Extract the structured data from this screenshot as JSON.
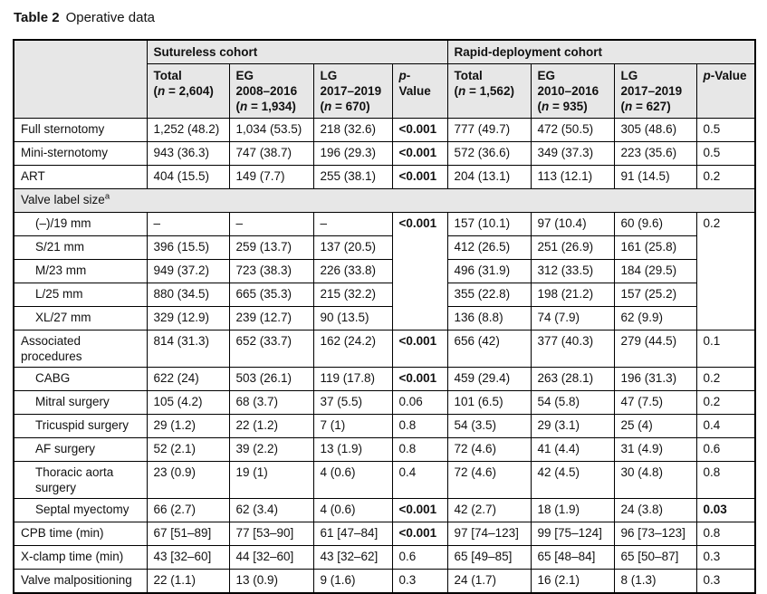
{
  "title": {
    "label": "Table 2",
    "caption": "Operative data"
  },
  "colors": {
    "header_bg": "#e7e7e7",
    "border": "#000000",
    "text": "#111111"
  },
  "header": {
    "groups": [
      {
        "label": "Sutureless cohort"
      },
      {
        "label": "Rapid-deployment cohort"
      }
    ],
    "columns": [
      {
        "name": "Total",
        "years": "",
        "n_open": "(",
        "n_italic": "n",
        "n_rest": " = 2,604)"
      },
      {
        "name": "EG",
        "years": "2008–2016",
        "n_open": "(",
        "n_italic": "n",
        "n_rest": " = 1,934)"
      },
      {
        "name": "LG",
        "years": "2017–2019",
        "n_open": "(",
        "n_italic": "n",
        "n_rest": " = 670)"
      },
      {
        "p_italic": "p",
        "p_rest": "-Value"
      },
      {
        "name": "Total",
        "years": "",
        "n_open": "(",
        "n_italic": "n",
        "n_rest": " = 1,562)"
      },
      {
        "name": "EG",
        "years": "2010–2016",
        "n_open": "(",
        "n_italic": "n",
        "n_rest": " = 935)"
      },
      {
        "name": "LG",
        "years": "2017–2019",
        "n_open": "(",
        "n_italic": "n",
        "n_rest": " = 627)"
      },
      {
        "p_italic": "p",
        "p_rest": "-Value"
      }
    ]
  },
  "rows": [
    {
      "type": "data",
      "label": "Full sternotomy",
      "indent": false,
      "cells": [
        "1,252 (48.2)",
        "1,034 (53.5)",
        "218 (32.6)",
        {
          "v": "<0.001",
          "bold": true
        },
        "777 (49.7)",
        "472 (50.5)",
        "305 (48.6)",
        "0.5"
      ]
    },
    {
      "type": "data",
      "label": "Mini-sternotomy",
      "indent": false,
      "cells": [
        "943 (36.3)",
        "747 (38.7)",
        "196 (29.3)",
        {
          "v": "<0.001",
          "bold": true
        },
        "572 (36.6)",
        "349 (37.3)",
        "223 (35.6)",
        "0.5"
      ]
    },
    {
      "type": "data",
      "label": "ART",
      "indent": false,
      "cells": [
        "404 (15.5)",
        "149 (7.7)",
        "255 (38.1)",
        {
          "v": "<0.001",
          "bold": true
        },
        "204 (13.1)",
        "113 (12.1)",
        "91 (14.5)",
        "0.2"
      ]
    },
    {
      "type": "section",
      "label": "Valve label size",
      "sup": "a"
    },
    {
      "type": "data",
      "label": "(–)/19 mm",
      "indent": true,
      "cells": [
        "–",
        "–",
        "–",
        {
          "v": "<0.001",
          "bold": true,
          "rowspan": 5
        },
        "157 (10.1)",
        "97 (10.4)",
        "60 (9.6)",
        {
          "v": "0.2",
          "rowspan": 5
        }
      ]
    },
    {
      "type": "data",
      "label": "S/21 mm",
      "indent": true,
      "cells": [
        "396 (15.5)",
        "259 (13.7)",
        "137 (20.5)",
        "412 (26.5)",
        "251 (26.9)",
        "161 (25.8)"
      ]
    },
    {
      "type": "data",
      "label": "M/23 mm",
      "indent": true,
      "cells": [
        "949 (37.2)",
        "723 (38.3)",
        "226 (33.8)",
        "496 (31.9)",
        "312 (33.5)",
        "184 (29.5)"
      ]
    },
    {
      "type": "data",
      "label": "L/25 mm",
      "indent": true,
      "cells": [
        "880 (34.5)",
        "665 (35.3)",
        "215 (32.2)",
        "355 (22.8)",
        "198 (21.2)",
        "157 (25.2)"
      ]
    },
    {
      "type": "data",
      "label": "XL/27 mm",
      "indent": true,
      "cells": [
        "329 (12.9)",
        "239 (12.7)",
        "90 (13.5)",
        "136 (8.8)",
        "74 (7.9)",
        "62 (9.9)"
      ]
    },
    {
      "type": "data",
      "label": "Associated procedures",
      "indent": false,
      "cells": [
        "814 (31.3)",
        "652 (33.7)",
        "162 (24.2)",
        {
          "v": "<0.001",
          "bold": true
        },
        "656 (42)",
        "377 (40.3)",
        "279 (44.5)",
        "0.1"
      ]
    },
    {
      "type": "data",
      "label": "CABG",
      "indent": true,
      "cells": [
        "622 (24)",
        "503 (26.1)",
        "119 (17.8)",
        {
          "v": "<0.001",
          "bold": true
        },
        "459 (29.4)",
        "263 (28.1)",
        "196 (31.3)",
        "0.2"
      ]
    },
    {
      "type": "data",
      "label": "Mitral surgery",
      "indent": true,
      "cells": [
        "105 (4.2)",
        "68 (3.7)",
        "37 (5.5)",
        "0.06",
        "101 (6.5)",
        "54 (5.8)",
        "47 (7.5)",
        "0.2"
      ]
    },
    {
      "type": "data",
      "label": "Tricuspid surgery",
      "indent": true,
      "cells": [
        "29 (1.2)",
        "22 (1.2)",
        "7 (1)",
        "0.8",
        "54 (3.5)",
        "29 (3.1)",
        "25 (4)",
        "0.4"
      ]
    },
    {
      "type": "data",
      "label": "AF surgery",
      "indent": true,
      "cells": [
        "52 (2.1)",
        "39 (2.2)",
        "13 (1.9)",
        "0.8",
        "72 (4.6)",
        "41 (4.4)",
        "31 (4.9)",
        "0.6"
      ]
    },
    {
      "type": "data",
      "label": "Thoracic aorta surgery",
      "indent": true,
      "cells": [
        "23 (0.9)",
        "19 (1)",
        "4 (0.6)",
        "0.4",
        "72 (4.6)",
        "42 (4.5)",
        "30 (4.8)",
        "0.8"
      ]
    },
    {
      "type": "data",
      "label": "Septal myectomy",
      "indent": true,
      "cells": [
        "66 (2.7)",
        "62 (3.4)",
        "4 (0.6)",
        {
          "v": "<0.001",
          "bold": true
        },
        "42 (2.7)",
        "18 (1.9)",
        "24 (3.8)",
        {
          "v": "0.03",
          "bold": true
        }
      ]
    },
    {
      "type": "data",
      "label": "CPB time (min)",
      "indent": false,
      "cells": [
        "67 [51–89]",
        "77 [53–90]",
        "61 [47–84]",
        {
          "v": "<0.001",
          "bold": true
        },
        "97 [74–123]",
        "99 [75–124]",
        "96 [73–123]",
        "0.8"
      ]
    },
    {
      "type": "data",
      "label": "X-clamp time (min)",
      "indent": false,
      "cells": [
        "43 [32–60]",
        "44 [32–60]",
        "43 [32–62]",
        "0.6",
        "65 [49–85]",
        "65 [48–84]",
        "65 [50–87]",
        "0.3"
      ]
    },
    {
      "type": "data",
      "label": "Valve malpositioning",
      "indent": false,
      "cells": [
        "22 (1.1)",
        "13 (0.9)",
        "9 (1.6)",
        "0.3",
        "24 (1.7)",
        "16 (2.1)",
        "8 (1.3)",
        "0.3"
      ]
    }
  ]
}
